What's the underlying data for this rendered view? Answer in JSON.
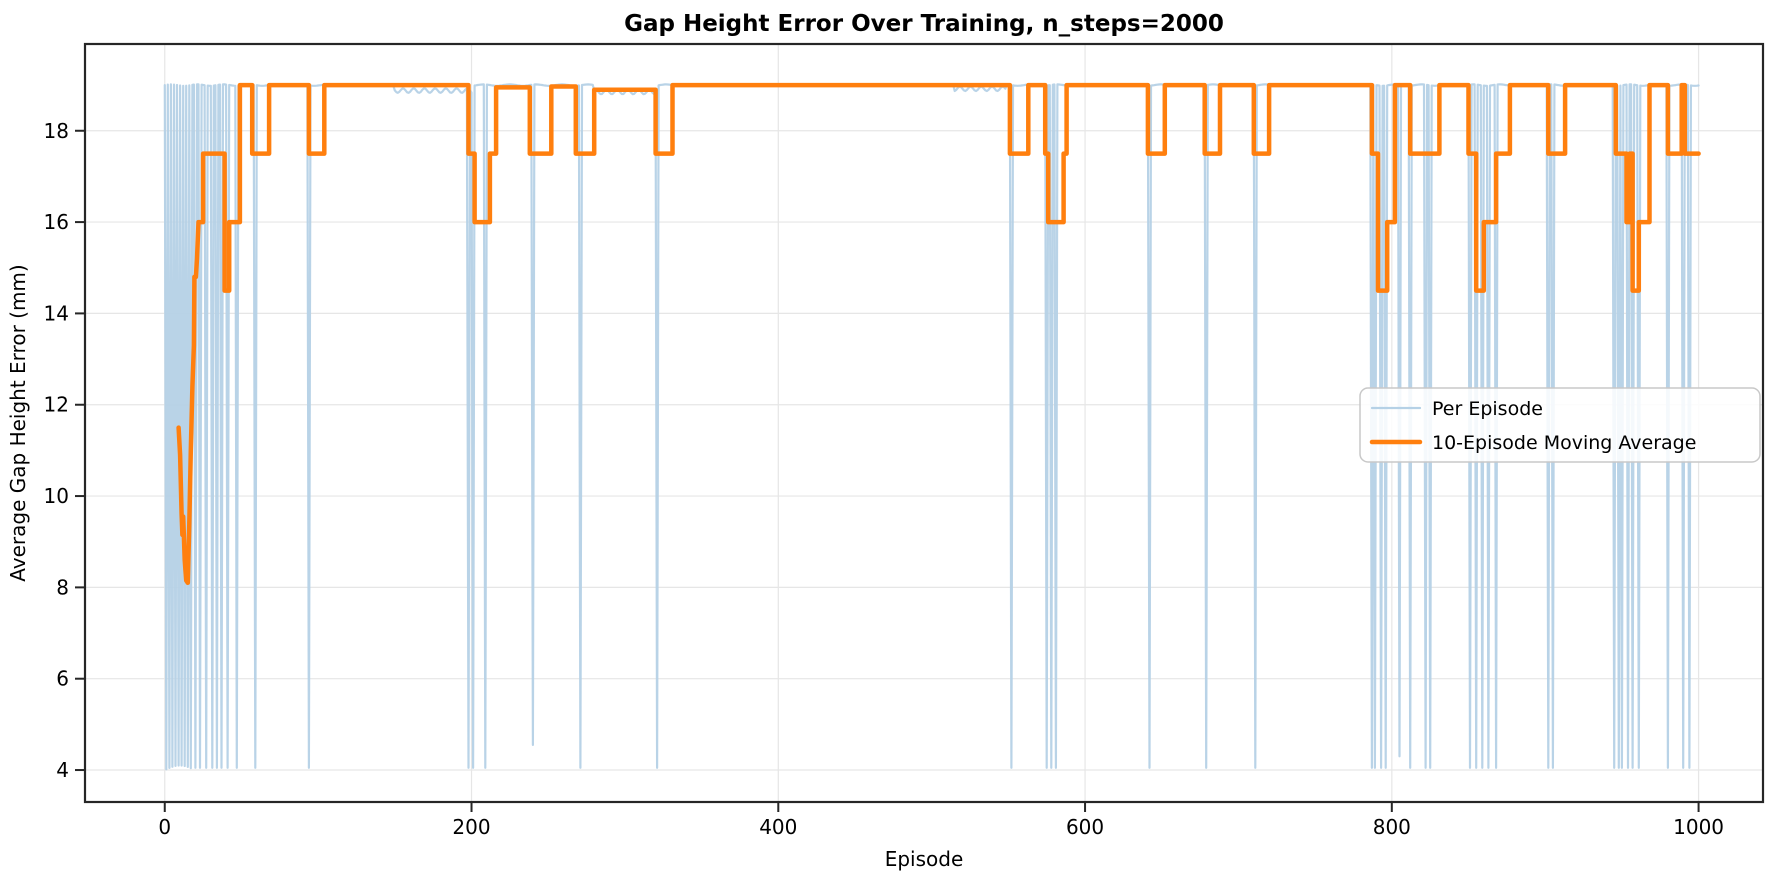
{
  "title": "Gap Height Error Over Training, n_steps=2000",
  "axes": {
    "xlabel": "Episode",
    "ylabel": "Average Gap Height Error (mm)",
    "x_ticks": [
      0,
      200,
      400,
      600,
      800,
      1000
    ],
    "y_ticks": [
      4,
      6,
      8,
      10,
      12,
      14,
      16,
      18
    ],
    "xlim": [
      -52,
      1042
    ],
    "ylim": [
      3.3,
      19.9
    ],
    "grid": true
  },
  "colors": {
    "per_episode": "#b5d1e6",
    "moving_average": "#ff7f0e",
    "grid": "#e6e6e6",
    "spine": "#262626",
    "legend_border": "#c8c8c8",
    "background": "#ffffff"
  },
  "legend": {
    "position": "center right",
    "items": [
      {
        "label": "Per Episode",
        "color": "#b5d1e6",
        "linewidth": 2.2
      },
      {
        "label": "10-Episode Moving Average",
        "color": "#ff7f0e",
        "linewidth": 4.5
      }
    ]
  },
  "chart_data": {
    "type": "line",
    "title": "Gap Height Error Over Training, n_steps=2000",
    "xlabel": "Episode",
    "ylabel": "Average Gap Height Error (mm)",
    "x_range": [
      0,
      1000
    ],
    "series": [
      {
        "name": "Per Episode",
        "style": "thin light-blue, mostly flat at 19 with single-episode drops to ~4",
        "base_value": 19.0,
        "dip_value": 4.05,
        "dense_alternating_dip_range": [
          1,
          18
        ],
        "dip_episodes": [
          20,
          23,
          27,
          31,
          34,
          37,
          41,
          47,
          59,
          94,
          198,
          201,
          209,
          240,
          271,
          321,
          552,
          575,
          578,
          581,
          642,
          679,
          711,
          787,
          789,
          793,
          796,
          805,
          812,
          822,
          825,
          851,
          855,
          859,
          863,
          868,
          902,
          905,
          945,
          948,
          950,
          954,
          957,
          961,
          980,
          990,
          994
        ],
        "dip_value_overrides": {
          "240": 4.55,
          "805": 4.3
        },
        "top_wobble_segments": [
          [
            150,
            200,
            18.88
          ],
          [
            280,
            320,
            18.85
          ],
          [
            515,
            548,
            18.92
          ]
        ]
      },
      {
        "name": "10-Episode Moving Average",
        "style": "thick orange step line",
        "start_points": [
          [
            9,
            11.5
          ],
          [
            10,
            10.9
          ],
          [
            11,
            9.6
          ],
          [
            11.5,
            9.15
          ],
          [
            12,
            9.55
          ],
          [
            13,
            8.6
          ],
          [
            14,
            8.15
          ],
          [
            15,
            8.1
          ],
          [
            16,
            9.4
          ],
          [
            17,
            11.0
          ],
          [
            18,
            12.4
          ],
          [
            19,
            13.3
          ],
          [
            19.3,
            14.8
          ],
          [
            20.3,
            14.8
          ],
          [
            21,
            15.2
          ],
          [
            22,
            16.0
          ]
        ],
        "segments": [
          [
            22,
            25,
            16.0
          ],
          [
            25,
            39,
            17.5
          ],
          [
            39,
            42,
            14.5
          ],
          [
            42,
            49,
            16.0
          ],
          [
            49,
            57,
            19.0
          ],
          [
            57,
            68,
            17.5
          ],
          [
            68,
            94,
            19.0
          ],
          [
            94,
            104,
            17.5
          ],
          [
            104,
            198,
            19.0
          ],
          [
            198,
            202,
            17.5
          ],
          [
            202,
            212,
            16.0
          ],
          [
            212,
            216,
            17.5
          ],
          [
            216,
            238,
            18.95
          ],
          [
            238,
            252,
            17.5
          ],
          [
            252,
            268,
            18.97
          ],
          [
            268,
            280,
            17.5
          ],
          [
            280,
            320,
            18.9
          ],
          [
            320,
            331,
            17.5
          ],
          [
            331,
            551,
            19.0
          ],
          [
            551,
            563,
            17.5
          ],
          [
            563,
            574,
            19.0
          ],
          [
            574,
            576,
            17.5
          ],
          [
            576,
            586,
            16.0
          ],
          [
            586,
            588,
            17.5
          ],
          [
            588,
            641,
            19.0
          ],
          [
            641,
            652,
            17.5
          ],
          [
            652,
            678,
            19.0
          ],
          [
            678,
            688,
            17.5
          ],
          [
            688,
            710,
            19.0
          ],
          [
            710,
            720,
            17.5
          ],
          [
            720,
            787,
            19.0
          ],
          [
            787,
            791,
            17.5
          ],
          [
            791,
            797,
            14.5
          ],
          [
            797,
            802,
            16.0
          ],
          [
            802,
            812,
            19.0
          ],
          [
            812,
            831,
            17.5
          ],
          [
            831,
            850,
            19.0
          ],
          [
            850,
            855,
            17.5
          ],
          [
            855,
            860,
            14.5
          ],
          [
            860,
            868,
            16.0
          ],
          [
            868,
            877,
            17.5
          ],
          [
            877,
            902,
            19.0
          ],
          [
            902,
            913,
            17.5
          ],
          [
            913,
            946,
            19.0
          ],
          [
            946,
            953,
            17.5
          ],
          [
            953,
            955,
            16.0
          ],
          [
            955,
            957,
            17.5
          ],
          [
            957,
            961,
            14.5
          ],
          [
            961,
            968,
            16.0
          ],
          [
            968,
            980,
            19.0
          ],
          [
            980,
            989,
            17.5
          ],
          [
            989,
            991,
            19.0
          ],
          [
            991,
            1000,
            17.5
          ]
        ]
      }
    ]
  }
}
